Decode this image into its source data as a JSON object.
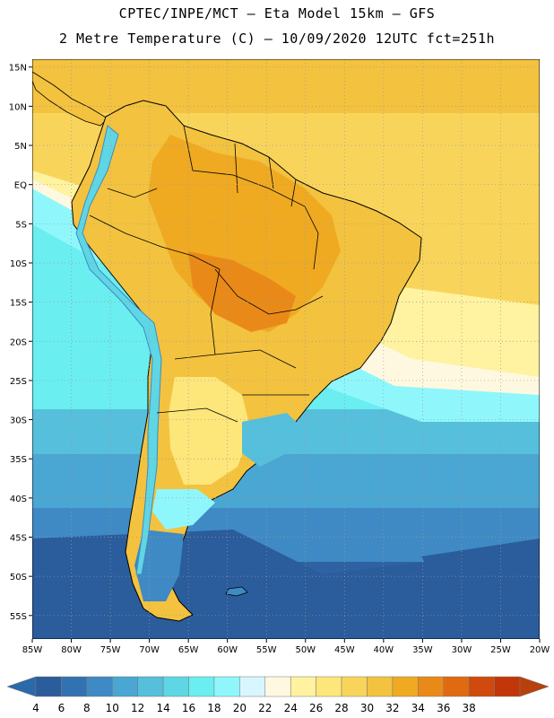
{
  "header": {
    "line1": "CPTEC/INPE/MCT –  Eta Model 15km – GFS",
    "line2": "2 Metre Temperature (C) – 10/09/2020 12UTC fct=251h"
  },
  "map": {
    "region": "South America",
    "lon_range": [
      -85,
      -20
    ],
    "lat_range": [
      -58,
      16
    ],
    "lon_ticks": [
      "85W",
      "80W",
      "75W",
      "70W",
      "65W",
      "60W",
      "55W",
      "50W",
      "45W",
      "40W",
      "35W",
      "30W",
      "25W",
      "20W"
    ],
    "lat_ticks": [
      "15N",
      "10N",
      "5N",
      "EQ",
      "5S",
      "10S",
      "15S",
      "20S",
      "25S",
      "30S",
      "35S",
      "40S",
      "45S",
      "50S",
      "55S"
    ],
    "grid": true
  },
  "colorbar": {
    "labels": [
      "4",
      "6",
      "8",
      "10",
      "12",
      "14",
      "16",
      "18",
      "20",
      "22",
      "24",
      "26",
      "28",
      "30",
      "32",
      "34",
      "36",
      "38"
    ],
    "colors": [
      "#2b5c9c",
      "#3372b0",
      "#3f8ac4",
      "#4aa6d2",
      "#56bfdb",
      "#5fd6e3",
      "#6aeef0",
      "#8ff7fb",
      "#d7f6fd",
      "#fff8e0",
      "#fff2a0",
      "#fde67a",
      "#f8d55a",
      "#f3c23f",
      "#efaa22",
      "#e98a18",
      "#e06a10",
      "#cf4a0c",
      "#c23609"
    ],
    "left_arrow_color": "#2a6aa8",
    "right_arrow_color": "#b8400c"
  }
}
